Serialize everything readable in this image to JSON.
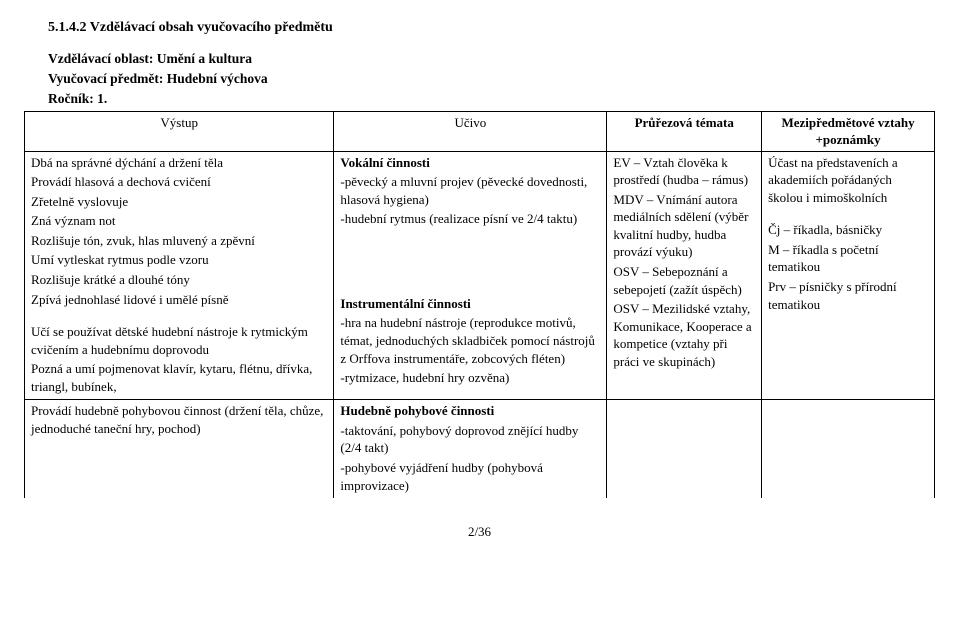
{
  "heading": "5.1.4.2 Vzdělávací obsah vyučovacího předmětu",
  "sub": {
    "oblast": "Vzdělávací oblast: Umění a kultura",
    "predmet": "Vyučovací předmět: Hudební výchova",
    "rocnik": "Ročník: 1."
  },
  "headers": {
    "vystup": "Výstup",
    "ucivo": "Učivo",
    "prurez": "Průřezová témata",
    "mezi": "Mezipředmětové vztahy +poznámky"
  },
  "row1": {
    "vystup": [
      "Dbá na správné dýchání a držení těla",
      "Provádí hlasová a dechová cvičení",
      "Zřetelně vyslovuje",
      "Zná význam not",
      "Rozlišuje tón, zvuk, hlas mluvený a zpěvní",
      "Umí vytleskat rytmus podle vzoru",
      "Rozlišuje krátké a dlouhé tóny",
      "Zpívá jednohlasé lidové i umělé písně",
      "",
      "Učí se používat dětské hudební nástroje k rytmickým cvičením a hudebnímu doprovodu",
      "Pozná a umí pojmenovat klavír, kytaru, flétnu, dřívka, triangl, bubínek,"
    ],
    "ucivo": [
      "Vokální činnosti",
      "-pěvecký a mluvní projev (pěvecké dovednosti, hlasová hygiena)",
      "-hudební rytmus (realizace písní ve 2/4 taktu)",
      "",
      "",
      "",
      "",
      "",
      "Instrumentální činnosti",
      "-hra na hudební nástroje (reprodukce motivů, témat, jednoduchých skladbiček pomocí nástrojů z Orffova instrumentáře, zobcových fléten)",
      "-rytmizace, hudební hry ozvěna)"
    ],
    "prurez": [
      "EV – Vztah člověka k prostředí (hudba – rámus)",
      "MDV – Vnímání autora mediálních sdělení (výběr kvalitní hudby, hudba provází výuku)",
      "OSV – Sebepoznání a sebepojetí (zažít úspěch)",
      "OSV – Mezilidské vztahy, Komunikace, Kooperace a kompetice (vztahy při práci ve skupinách)"
    ],
    "mezi": [
      "Účast na představeních a akademiích pořádaných školou i mimoškolních",
      "",
      "Čj – říkadla, básničky",
      "M – říkadla s početní tematikou",
      "Prv – písničky s přírodní tematikou"
    ]
  },
  "row2": {
    "vystup": [
      "Provádí hudebně pohybovou činnost (držení těla, chůze, jednoduché taneční hry, pochod)"
    ],
    "ucivo": [
      "Hudebně pohybové činnosti",
      "-taktování, pohybový doprovod znějící hudby (2/4 takt)",
      "-pohybové vyjádření hudby (pohybová improvizace)"
    ],
    "prurez": [],
    "mezi": []
  },
  "pagefoot": "2/36",
  "bold_ucivo_titles": [
    "Vokální činnosti",
    "Instrumentální činnosti",
    "Hudebně pohybové činnosti"
  ]
}
